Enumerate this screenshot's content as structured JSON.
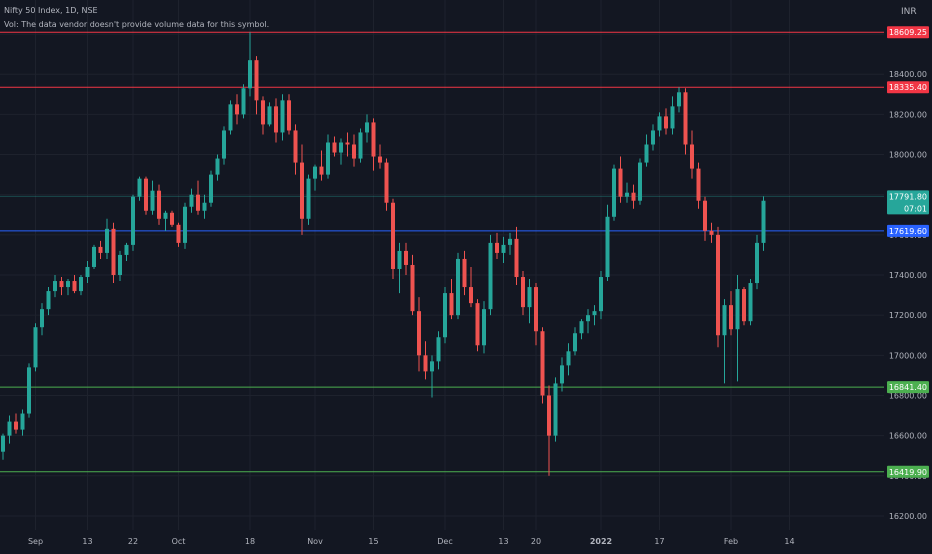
{
  "header": {
    "symbol_line": "Nifty 50 Index, 1D, NSE",
    "vol_line": "Vol: The data vendor doesn't provide volume data for this symbol."
  },
  "currency": "INR",
  "colors": {
    "background": "#131722",
    "up": "#26a69a",
    "down": "#ef5350",
    "grid": "#1e222d",
    "text": "#b2b5be",
    "resistance": "#f23645",
    "support": "#4caf50",
    "current": "#2962ff"
  },
  "chart_data": {
    "type": "candlestick",
    "ylim": [
      16130,
      18700
    ],
    "y_ticks": [
      16200,
      16400,
      16600,
      16800,
      17000,
      17200,
      17400,
      17600,
      17800,
      18000,
      18200,
      18400,
      18600
    ],
    "y_tick_labels": [
      "16200.00",
      "16400.00",
      "16600.00",
      "16800.00",
      "17000.00",
      "17200.00",
      "17400.00",
      "17600.00",
      "17800.00",
      "18000.00",
      "18200.00",
      "18400.00",
      "18600.00"
    ],
    "x_ticks": [
      {
        "label": "Sep",
        "index": 5,
        "bold": false
      },
      {
        "label": "13",
        "index": 13,
        "bold": false
      },
      {
        "label": "22",
        "index": 20,
        "bold": false
      },
      {
        "label": "Oct",
        "index": 27,
        "bold": false
      },
      {
        "label": "18",
        "index": 38,
        "bold": false
      },
      {
        "label": "Nov",
        "index": 48,
        "bold": false
      },
      {
        "label": "15",
        "index": 57,
        "bold": false
      },
      {
        "label": "Dec",
        "index": 68,
        "bold": false
      },
      {
        "label": "13",
        "index": 77,
        "bold": false
      },
      {
        "label": "20",
        "index": 82,
        "bold": false
      },
      {
        "label": "2022",
        "index": 92,
        "bold": true
      },
      {
        "label": "17",
        "index": 101,
        "bold": false
      },
      {
        "label": "Feb",
        "index": 112,
        "bold": false
      },
      {
        "label": "14",
        "index": 121,
        "bold": false
      }
    ],
    "horizontal_lines": [
      {
        "value": 18609.25,
        "label": "18609.25",
        "kind": "resistance"
      },
      {
        "value": 18335.4,
        "label": "18335.40",
        "kind": "resistance"
      },
      {
        "value": 17791.8,
        "label": "17791.80",
        "kind": "last",
        "sublabel": "07:01"
      },
      {
        "value": 17619.6,
        "label": "17619.60",
        "kind": "current"
      },
      {
        "value": 16841.4,
        "label": "16841.40",
        "kind": "support"
      },
      {
        "value": 16419.9,
        "label": "16419.90",
        "kind": "support"
      }
    ],
    "candles": [
      [
        16520,
        16610,
        16480,
        16600
      ],
      [
        16600,
        16700,
        16560,
        16670
      ],
      [
        16670,
        16710,
        16610,
        16630
      ],
      [
        16630,
        16730,
        16600,
        16710
      ],
      [
        16710,
        16960,
        16690,
        16940
      ],
      [
        16940,
        17160,
        16920,
        17140
      ],
      [
        17140,
        17260,
        17100,
        17230
      ],
      [
        17230,
        17340,
        17200,
        17320
      ],
      [
        17320,
        17400,
        17290,
        17370
      ],
      [
        17370,
        17390,
        17300,
        17340
      ],
      [
        17340,
        17380,
        17300,
        17370
      ],
      [
        17370,
        17400,
        17310,
        17320
      ],
      [
        17320,
        17400,
        17300,
        17390
      ],
      [
        17390,
        17470,
        17360,
        17440
      ],
      [
        17440,
        17550,
        17430,
        17540
      ],
      [
        17540,
        17570,
        17480,
        17510
      ],
      [
        17510,
        17680,
        17480,
        17630
      ],
      [
        17630,
        17660,
        17360,
        17400
      ],
      [
        17400,
        17520,
        17370,
        17500
      ],
      [
        17500,
        17560,
        17470,
        17550
      ],
      [
        17550,
        17800,
        17520,
        17790
      ],
      [
        17790,
        17890,
        17770,
        17880
      ],
      [
        17880,
        17890,
        17700,
        17720
      ],
      [
        17720,
        17870,
        17700,
        17820
      ],
      [
        17820,
        17850,
        17650,
        17680
      ],
      [
        17680,
        17720,
        17620,
        17710
      ],
      [
        17710,
        17720,
        17640,
        17650
      ],
      [
        17650,
        17660,
        17540,
        17560
      ],
      [
        17560,
        17760,
        17530,
        17740
      ],
      [
        17740,
        17830,
        17710,
        17800
      ],
      [
        17800,
        17870,
        17700,
        17720
      ],
      [
        17720,
        17800,
        17680,
        17760
      ],
      [
        17760,
        17920,
        17740,
        17900
      ],
      [
        17900,
        18000,
        17870,
        17980
      ],
      [
        17980,
        18140,
        17950,
        18120
      ],
      [
        18120,
        18270,
        18100,
        18250
      ],
      [
        18250,
        18300,
        18150,
        18200
      ],
      [
        18200,
        18350,
        18180,
        18330
      ],
      [
        18330,
        18609.25,
        18290,
        18470
      ],
      [
        18470,
        18490,
        18200,
        18270
      ],
      [
        18270,
        18290,
        18100,
        18150
      ],
      [
        18150,
        18260,
        18140,
        18240
      ],
      [
        18240,
        18280,
        18060,
        18110
      ],
      [
        18110,
        18300,
        18070,
        18270
      ],
      [
        18270,
        18300,
        18100,
        18120
      ],
      [
        18120,
        18150,
        17900,
        17960
      ],
      [
        17960,
        18050,
        17600,
        17680
      ],
      [
        17680,
        17900,
        17650,
        17880
      ],
      [
        17880,
        17950,
        17820,
        17940
      ],
      [
        17940,
        18020,
        17870,
        17900
      ],
      [
        17900,
        18100,
        17880,
        18060
      ],
      [
        18060,
        18090,
        17990,
        18010
      ],
      [
        18010,
        18080,
        17950,
        18060
      ],
      [
        18060,
        18110,
        17990,
        18050
      ],
      [
        18050,
        18100,
        17940,
        17980
      ],
      [
        17980,
        18130,
        17960,
        18110
      ],
      [
        18110,
        18200,
        18060,
        18160
      ],
      [
        18160,
        18180,
        17920,
        17990
      ],
      [
        17990,
        18050,
        17930,
        17960
      ],
      [
        17960,
        17980,
        17720,
        17760
      ],
      [
        17760,
        17780,
        17380,
        17430
      ],
      [
        17430,
        17560,
        17310,
        17520
      ],
      [
        17520,
        17560,
        17400,
        17450
      ],
      [
        17450,
        17500,
        17200,
        17220
      ],
      [
        17220,
        17290,
        16920,
        17000
      ],
      [
        17000,
        17070,
        16880,
        16920
      ],
      [
        16920,
        17000,
        16790,
        16970
      ],
      [
        16970,
        17120,
        16930,
        17090
      ],
      [
        17090,
        17340,
        17060,
        17310
      ],
      [
        17310,
        17380,
        17180,
        17200
      ],
      [
        17200,
        17510,
        17180,
        17480
      ],
      [
        17480,
        17520,
        17300,
        17340
      ],
      [
        17340,
        17440,
        17240,
        17260
      ],
      [
        17260,
        17280,
        17020,
        17050
      ],
      [
        17050,
        17270,
        17010,
        17230
      ],
      [
        17230,
        17600,
        17200,
        17560
      ],
      [
        17560,
        17610,
        17480,
        17510
      ],
      [
        17510,
        17590,
        17460,
        17550
      ],
      [
        17550,
        17610,
        17500,
        17580
      ],
      [
        17580,
        17640,
        17350,
        17390
      ],
      [
        17390,
        17420,
        17200,
        17240
      ],
      [
        17240,
        17380,
        17160,
        17340
      ],
      [
        17340,
        17360,
        17050,
        17120
      ],
      [
        17120,
        17140,
        16760,
        16800
      ],
      [
        16800,
        16850,
        16400,
        16600
      ],
      [
        16600,
        16890,
        16570,
        16860
      ],
      [
        16860,
        16990,
        16820,
        16950
      ],
      [
        16950,
        17060,
        16900,
        17020
      ],
      [
        17020,
        17140,
        17000,
        17110
      ],
      [
        17110,
        17180,
        17080,
        17170
      ],
      [
        17170,
        17230,
        17110,
        17200
      ],
      [
        17200,
        17250,
        17150,
        17220
      ],
      [
        17220,
        17420,
        17180,
        17390
      ],
      [
        17390,
        17750,
        17370,
        17690
      ],
      [
        17690,
        17950,
        17670,
        17930
      ],
      [
        17930,
        17990,
        17760,
        17790
      ],
      [
        17790,
        17860,
        17760,
        17810
      ],
      [
        17810,
        17850,
        17730,
        17770
      ],
      [
        17770,
        17980,
        17750,
        17960
      ],
      [
        17960,
        18100,
        17940,
        18050
      ],
      [
        18050,
        18150,
        18020,
        18120
      ],
      [
        18120,
        18210,
        18090,
        18190
      ],
      [
        18190,
        18230,
        18100,
        18130
      ],
      [
        18130,
        18290,
        18100,
        18240
      ],
      [
        18240,
        18335.4,
        18210,
        18310
      ],
      [
        18310,
        18330,
        18000,
        18050
      ],
      [
        18050,
        18120,
        17880,
        17930
      ],
      [
        17930,
        17960,
        17730,
        17770
      ],
      [
        17770,
        17790,
        17570,
        17620
      ],
      [
        17620,
        17660,
        17560,
        17600
      ],
      [
        17600,
        17640,
        17040,
        17100
      ],
      [
        17100,
        17280,
        16860,
        17250
      ],
      [
        17250,
        17320,
        17100,
        17130
      ],
      [
        17130,
        17400,
        16870,
        17330
      ],
      [
        17330,
        17340,
        17150,
        17170
      ],
      [
        17170,
        17380,
        17150,
        17360
      ],
      [
        17360,
        17600,
        17330,
        17560
      ],
      [
        17560,
        17791.8,
        17520,
        17770
      ]
    ]
  }
}
